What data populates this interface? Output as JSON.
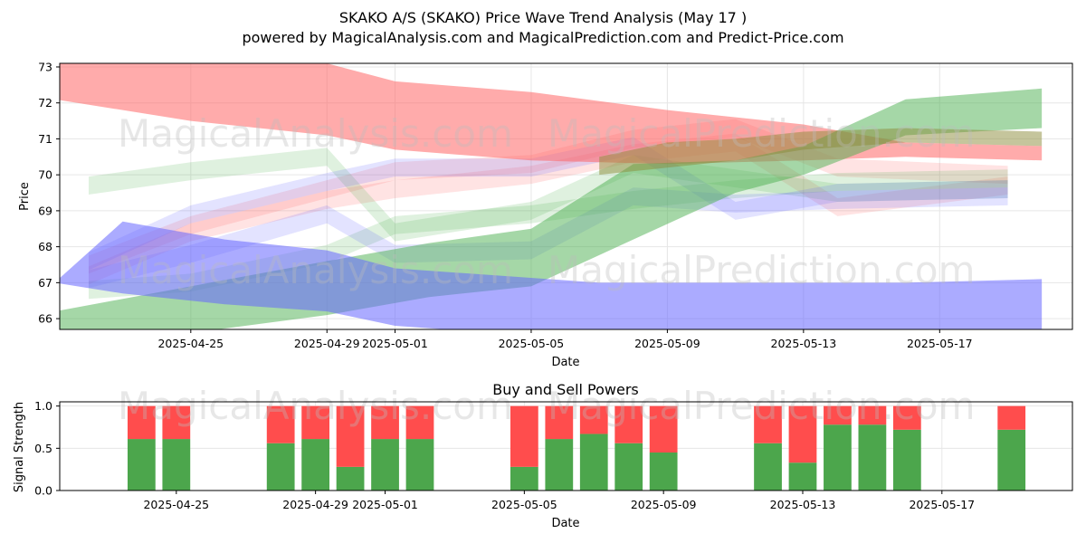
{
  "header": {
    "title": "SKAKO A/S (SKAKO) Price Wave Trend Analysis (May 17 )",
    "subtitle": "powered by MagicalAnalysis.com and MagicalPrediction.com and Predict-Price.com"
  },
  "watermarks": {
    "top_left": "MagicalAnalysis.com",
    "top_right": "MagicalPrediction.com",
    "mid_left": "MagicalAnalysis.com",
    "mid_right": "MagicalPrediction.com",
    "bottom_left": "MagicalAnalysis.com",
    "bottom_right": "MagicalPrediction.com"
  },
  "colors": {
    "red_band": "#ff6666",
    "green_band": "#4caf50",
    "blue_band": "#6666ff",
    "olive_band": "#8b8b3a",
    "buy": "#4ca64c",
    "sell": "#ff4d4d"
  },
  "chart_data": [
    {
      "type": "area",
      "title": "",
      "xlabel": "Date",
      "ylabel": "Price",
      "xlim": [
        "2025-04-21",
        "2025-05-20"
      ],
      "ylim": [
        65.7,
        73.1
      ],
      "yticks": [
        66,
        67,
        68,
        69,
        70,
        71,
        72,
        73
      ],
      "xticks": [
        "2025-04-25",
        "2025-04-29",
        "2025-05-01",
        "2025-05-05",
        "2025-05-09",
        "2025-05-13",
        "2025-05-17"
      ],
      "grid": true,
      "series": [
        {
          "color": "red",
          "opacity": 0.55,
          "x": [
            "2025-04-21",
            "2025-04-25",
            "2025-04-29",
            "2025-05-01",
            "2025-05-05",
            "2025-05-09",
            "2025-05-13",
            "2025-05-16",
            "2025-05-20"
          ],
          "lower": [
            72.1,
            71.5,
            71.1,
            70.7,
            70.4,
            70.3,
            70.4,
            70.5,
            70.4
          ],
          "upper": [
            73.2,
            73.3,
            73.1,
            72.6,
            72.3,
            71.8,
            71.4,
            70.9,
            70.8
          ]
        },
        {
          "color": "green",
          "opacity": 0.5,
          "x": [
            "2025-04-21",
            "2025-04-25",
            "2025-04-29",
            "2025-05-02",
            "2025-05-05",
            "2025-05-08",
            "2025-05-11",
            "2025-05-13",
            "2025-05-16",
            "2025-05-20"
          ],
          "lower": [
            65.6,
            65.6,
            66.1,
            66.6,
            66.9,
            68.2,
            69.5,
            70.0,
            71.1,
            71.3
          ],
          "upper": [
            66.2,
            66.9,
            67.6,
            68.1,
            68.5,
            70.3,
            70.4,
            70.8,
            72.1,
            72.4
          ]
        },
        {
          "color": "blue",
          "opacity": 0.55,
          "x": [
            "2025-04-21",
            "2025-04-23",
            "2025-04-26",
            "2025-04-29",
            "2025-05-01",
            "2025-05-04",
            "2025-05-07",
            "2025-05-10",
            "2025-05-13",
            "2025-05-16",
            "2025-05-20"
          ],
          "lower": [
            67.0,
            66.7,
            66.4,
            66.2,
            65.8,
            65.6,
            65.5,
            65.5,
            65.5,
            65.5,
            65.6
          ],
          "upper": [
            67.0,
            68.7,
            68.2,
            67.9,
            67.4,
            67.2,
            67.0,
            67.0,
            67.0,
            67.0,
            67.1
          ]
        },
        {
          "color": "olive",
          "opacity": 0.5,
          "x": [
            "2025-05-07",
            "2025-05-09",
            "2025-05-11",
            "2025-05-13",
            "2025-05-16",
            "2025-05-20"
          ],
          "lower": [
            70.0,
            70.2,
            70.4,
            70.7,
            70.9,
            70.8
          ],
          "upper": [
            70.5,
            70.9,
            71.0,
            71.2,
            71.3,
            71.2
          ]
        }
      ],
      "thin_bands": [
        {
          "color": "red",
          "values_center": [
            67.2,
            68.4,
            69.3,
            69.6,
            70.0,
            70.6,
            70.9,
            69.1,
            69.7
          ]
        },
        {
          "color": "red",
          "values_center": [
            67.5,
            68.6,
            69.6,
            70.1,
            70.3,
            71.0,
            71.3,
            70.2,
            70.0
          ]
        },
        {
          "color": "green",
          "values_center": [
            69.7,
            70.1,
            70.5,
            68.4,
            69.0,
            70.3,
            69.9,
            69.5,
            69.6
          ]
        },
        {
          "color": "green",
          "values_center": [
            66.8,
            67.0,
            67.8,
            68.6,
            68.9,
            69.3,
            69.6,
            69.8,
            69.9
          ]
        },
        {
          "color": "blue",
          "values_center": [
            67.6,
            68.9,
            69.8,
            70.2,
            70.2,
            70.8,
            69.0,
            69.5,
            69.6
          ]
        },
        {
          "color": "blue",
          "values_center": [
            67.1,
            67.8,
            68.9,
            67.8,
            67.9,
            69.4,
            69.2,
            69.3,
            69.4
          ]
        }
      ]
    },
    {
      "type": "bar",
      "title": "Buy and Sell Powers",
      "xlabel": "Date",
      "ylabel": "Signal Strength",
      "ylim": [
        0,
        1.05
      ],
      "yticks": [
        "0.0",
        "0.5",
        "1.0"
      ],
      "xticks": [
        "2025-04-25",
        "2025-04-29",
        "2025-05-01",
        "2025-05-05",
        "2025-05-09",
        "2025-05-13",
        "2025-05-17"
      ],
      "grid": true,
      "categories": [
        "2025-04-24",
        "2025-04-25",
        "2025-04-28",
        "2025-04-29",
        "2025-04-30",
        "2025-05-01",
        "2025-05-02",
        "2025-05-05",
        "2025-05-06",
        "2025-05-07",
        "2025-05-08",
        "2025-05-09",
        "2025-05-12",
        "2025-05-13",
        "2025-05-14",
        "2025-05-15",
        "2025-05-16",
        "2025-05-19"
      ],
      "series": [
        {
          "name": "Buy",
          "color": "#4ca64c",
          "values": [
            0.61,
            0.61,
            0.56,
            0.61,
            0.28,
            0.61,
            0.61,
            0.28,
            0.61,
            0.67,
            0.56,
            0.45,
            0.56,
            0.33,
            0.78,
            0.78,
            0.72,
            0.72
          ]
        },
        {
          "name": "Sell",
          "color": "#ff4d4d",
          "values": [
            0.39,
            0.39,
            0.44,
            0.39,
            0.72,
            0.39,
            0.39,
            0.72,
            0.39,
            0.33,
            0.44,
            0.55,
            0.44,
            0.67,
            0.22,
            0.22,
            0.28,
            0.28
          ]
        }
      ]
    }
  ]
}
